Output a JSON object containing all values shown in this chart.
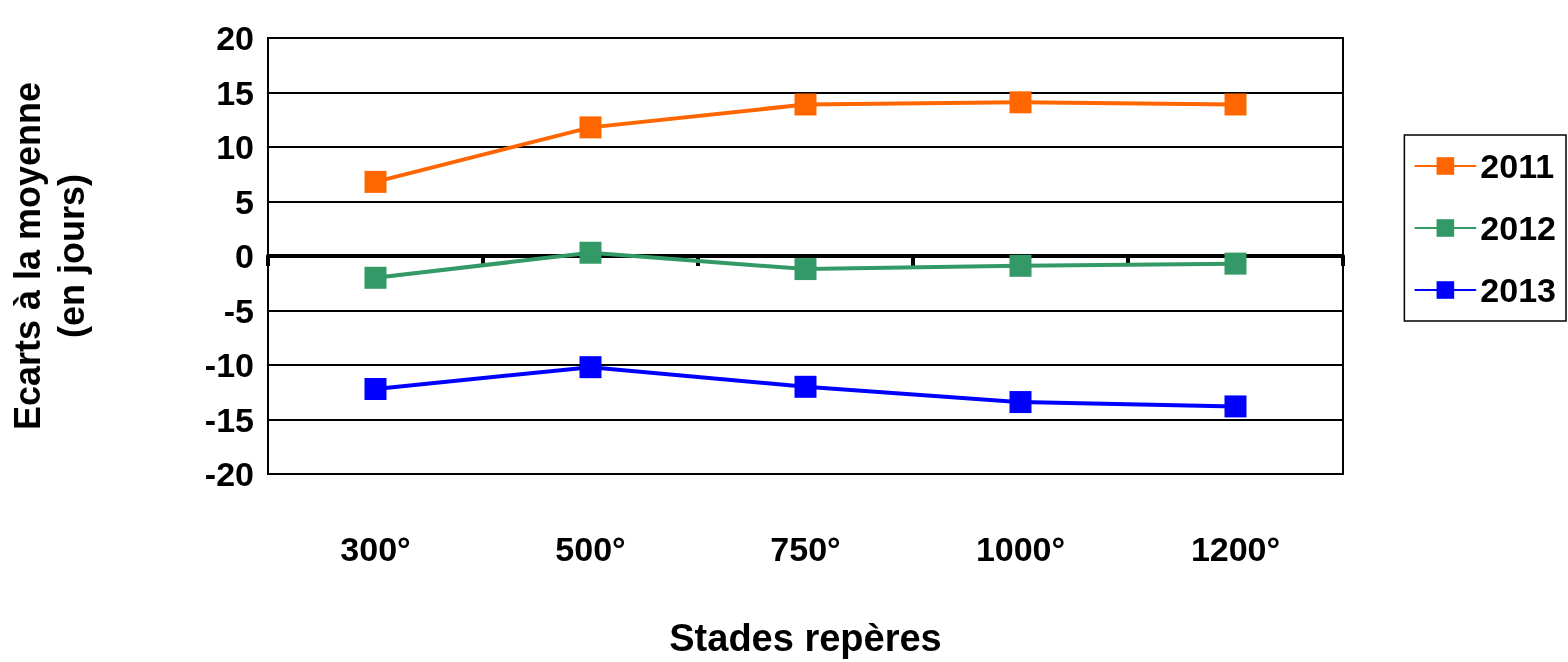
{
  "chart_data": {
    "type": "line",
    "xlabel": "Stades repères",
    "ylabel": "Ecarts à la moyenne\n(en jours)",
    "categories": [
      "300°",
      "500°",
      "750°",
      "1000°",
      "1200°"
    ],
    "series": [
      {
        "name": "2011",
        "color": "#ff6600",
        "values": [
          6.8,
          11.8,
          13.9,
          14.1,
          13.9
        ]
      },
      {
        "name": "2012",
        "color": "#339966",
        "values": [
          -2.0,
          0.3,
          -1.2,
          -0.9,
          -0.7
        ]
      },
      {
        "name": "2013",
        "color": "#0000ff",
        "values": [
          -12.2,
          -10.2,
          -12.0,
          -13.4,
          -13.8
        ]
      }
    ],
    "ylim": [
      -20,
      20
    ],
    "yticks": [
      -20,
      -15,
      -10,
      -5,
      0,
      5,
      10,
      15,
      20
    ],
    "grid": "y",
    "legend": "right",
    "marker": "square",
    "line_style": "solid"
  }
}
